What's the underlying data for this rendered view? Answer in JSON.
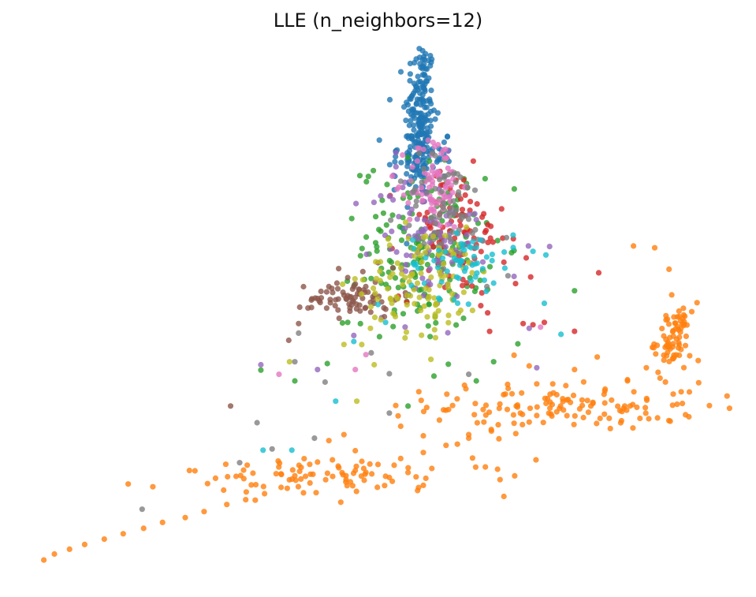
{
  "chart_data": {
    "type": "scatter",
    "title": "LLE (n_neighbors=12)",
    "xlabel": "",
    "ylabel": "",
    "axes_visible": false,
    "grid": false,
    "legend": "none",
    "xlim": [
      0,
      1
    ],
    "ylim": [
      0,
      1
    ],
    "series": [
      {
        "color": "#1f77b4",
        "clusters": [
          {
            "points": [
              [
                0.559,
                0.942
              ],
              [
                0.559,
                0.915
              ],
              [
                0.559,
                0.885
              ],
              [
                0.56,
                0.855
              ],
              [
                0.562,
                0.82
              ],
              [
                0.558,
                0.79
              ],
              [
                0.555,
                0.76
              ],
              [
                0.552,
                0.735
              ],
              [
                0.547,
                0.715
              ]
            ]
          },
          {
            "center": [
              0.556,
              0.8
            ],
            "spread": [
              0.01,
              0.07
            ],
            "n": 180
          },
          {
            "center": [
              0.556,
              0.74
            ],
            "spread": [
              0.022,
              0.025
            ],
            "n": 60
          },
          {
            "points": [
              [
                0.541,
                0.695
              ],
              [
                0.549,
                0.678
              ],
              [
                0.539,
                0.653
              ],
              [
                0.538,
                0.592
              ],
              [
                0.532,
                0.618
              ],
              [
                0.54,
                0.74
              ],
              [
                0.548,
                0.701
              ]
            ]
          }
        ]
      },
      {
        "color": "#ff7f0e",
        "clusters": [
          {
            "points": [
              [
                0.058,
                0.062
              ],
              [
                0.072,
                0.072
              ],
              [
                0.092,
                0.08
              ],
              [
                0.112,
                0.088
              ],
              [
                0.138,
                0.097
              ],
              [
                0.163,
                0.106
              ],
              [
                0.19,
                0.115
              ],
              [
                0.215,
                0.125
              ],
              [
                0.245,
                0.133
              ],
              [
                0.27,
                0.143
              ],
              [
                0.3,
                0.155
              ],
              [
                0.325,
                0.163
              ],
              [
                0.35,
                0.173
              ],
              [
                0.38,
                0.182
              ],
              [
                0.41,
                0.191
              ],
              [
                0.44,
                0.202
              ],
              [
                0.47,
                0.212
              ],
              [
                0.5,
                0.222
              ],
              [
                0.53,
                0.232
              ],
              [
                0.56,
                0.242
              ],
              [
                0.59,
                0.254
              ],
              [
                0.62,
                0.266
              ],
              [
                0.65,
                0.278
              ],
              [
                0.68,
                0.291
              ],
              [
                0.71,
                0.304
              ],
              [
                0.74,
                0.316
              ],
              [
                0.77,
                0.33
              ],
              [
                0.8,
                0.345
              ],
              [
                0.83,
                0.364
              ],
              [
                0.855,
                0.384
              ],
              [
                0.878,
                0.405
              ],
              [
                0.895,
                0.432
              ],
              [
                0.905,
                0.457
              ],
              [
                0.915,
                0.478
              ],
              [
                0.922,
                0.493
              ]
            ]
          },
          {
            "center": [
              0.75,
              0.32
            ],
            "spread": [
              0.09,
              0.02
            ],
            "n": 120
          },
          {
            "center": [
              0.89,
              0.43
            ],
            "spread": [
              0.012,
              0.03
            ],
            "n": 70
          },
          {
            "center": [
              0.45,
              0.2
            ],
            "spread": [
              0.12,
              0.015
            ],
            "n": 90
          },
          {
            "points": [
              [
                0.838,
                0.588
              ],
              [
                0.866,
                0.585
              ],
              [
                0.885,
                0.549
              ],
              [
                0.435,
                0.262
              ],
              [
                0.455,
                0.272
              ],
              [
                0.53,
                0.286
              ],
              [
                0.56,
                0.27
              ],
              [
                0.605,
                0.256
              ],
              [
                0.39,
                0.203
              ],
              [
                0.42,
                0.226
              ],
              [
                0.47,
                0.245
              ],
              [
                0.68,
                0.405
              ],
              [
                0.7,
                0.387
              ],
              [
                0.71,
                0.357
              ],
              [
                0.79,
                0.402
              ],
              [
                0.83,
                0.362
              ],
              [
                0.76,
                0.381
              ],
              [
                0.8,
                0.325
              ],
              [
                0.62,
                0.272
              ],
              [
                0.64,
                0.293
              ],
              [
                0.66,
                0.265
              ],
              [
                0.7,
                0.293
              ],
              [
                0.73,
                0.303
              ]
            ]
          }
        ]
      },
      {
        "color": "#2ca02c",
        "clusters": [
          {
            "center": [
              0.56,
              0.59
            ],
            "spread": [
              0.04,
              0.07
            ],
            "n": 160
          },
          {
            "points": [
              [
                0.345,
                0.38
              ],
              [
                0.39,
                0.362
              ],
              [
                0.433,
                0.391
              ],
              [
                0.453,
                0.459
              ],
              [
                0.46,
                0.46
              ],
              [
                0.502,
                0.436
              ],
              [
                0.52,
                0.453
              ],
              [
                0.574,
                0.37
              ],
              [
                0.593,
                0.39
              ],
              [
                0.653,
                0.394
              ],
              [
                0.645,
                0.515
              ],
              [
                0.63,
                0.362
              ],
              [
                0.685,
                0.424
              ],
              [
                0.76,
                0.513
              ]
            ]
          }
        ]
      },
      {
        "color": "#d62728",
        "clusters": [
          {
            "center": [
              0.6,
              0.61
            ],
            "spread": [
              0.035,
              0.055
            ],
            "n": 90
          },
          {
            "points": [
              [
                0.696,
                0.568
              ],
              [
                0.679,
                0.6
              ],
              [
                0.665,
                0.601
              ],
              [
                0.792,
                0.543
              ],
              [
                0.76,
                0.445
              ],
              [
                0.72,
                0.46
              ],
              [
                0.705,
                0.456
              ],
              [
                0.692,
                0.458
              ],
              [
                0.645,
                0.476
              ],
              [
                0.636,
                0.488
              ],
              [
                0.682,
                0.525
              ],
              [
                0.702,
                0.536
              ],
              [
                0.63,
                0.59
              ],
              [
                0.622,
                0.613
              ],
              [
                0.61,
                0.64
              ]
            ]
          }
        ]
      },
      {
        "color": "#9467bd",
        "clusters": [
          {
            "center": [
              0.56,
              0.6
            ],
            "spread": [
              0.035,
              0.06
            ],
            "n": 90
          },
          {
            "points": [
              [
                0.345,
                0.389
              ],
              [
                0.42,
                0.381
              ],
              [
                0.468,
                0.438
              ],
              [
                0.71,
                0.384
              ],
              [
                0.699,
                0.588
              ],
              [
                0.727,
                0.587
              ],
              [
                0.7,
                0.45
              ],
              [
                0.63,
                0.632
              ],
              [
                0.68,
                0.537
              ]
            ]
          }
        ]
      },
      {
        "color": "#8c564b",
        "clusters": [
          {
            "center": [
              0.47,
              0.5
            ],
            "spread": [
              0.03,
              0.015
            ],
            "n": 70
          },
          {
            "points": [
              [
                0.448,
                0.55
              ],
              [
                0.435,
                0.52
              ],
              [
                0.412,
                0.485
              ],
              [
                0.395,
                0.458
              ],
              [
                0.382,
                0.43
              ],
              [
                0.42,
                0.5
              ],
              [
                0.44,
                0.51
              ],
              [
                0.46,
                0.535
              ],
              [
                0.48,
                0.545
              ],
              [
                0.5,
                0.56
              ],
              [
                0.468,
                0.52
              ],
              [
                0.305,
                0.32
              ]
            ]
          }
        ]
      },
      {
        "color": "#e377c2",
        "clusters": [
          {
            "center": [
              0.575,
              0.695
            ],
            "spread": [
              0.018,
              0.04
            ],
            "n": 80
          },
          {
            "points": [
              [
                0.369,
                0.373
              ],
              [
                0.47,
                0.381
              ],
              [
                0.484,
                0.406
              ],
              [
                0.57,
                0.65
              ],
              [
                0.59,
                0.67
              ],
              [
                0.54,
                0.66
              ],
              [
                0.715,
                0.452
              ]
            ]
          }
        ]
      },
      {
        "color": "#7f7f7f",
        "clusters": [
          {
            "center": [
              0.59,
              0.64
            ],
            "spread": [
              0.03,
              0.05
            ],
            "n": 70
          },
          {
            "points": [
              [
                0.188,
                0.147
              ],
              [
                0.317,
                0.225
              ],
              [
                0.34,
                0.292
              ],
              [
                0.36,
                0.248
              ],
              [
                0.395,
                0.442
              ],
              [
                0.416,
                0.266
              ],
              [
                0.491,
                0.409
              ],
              [
                0.515,
                0.308
              ],
              [
                0.515,
                0.374
              ],
              [
                0.62,
                0.373
              ],
              [
                0.644,
                0.52
              ],
              [
                0.672,
                0.538
              ],
              [
                0.67,
                0.602
              ],
              [
                0.39,
                0.394
              ],
              [
                0.43,
                0.36
              ]
            ]
          }
        ]
      },
      {
        "color": "#bcbd22",
        "clusters": [
          {
            "center": [
              0.56,
              0.53
            ],
            "spread": [
              0.04,
              0.045
            ],
            "n": 110
          },
          {
            "points": [
              [
                0.383,
                0.394
              ],
              [
                0.455,
                0.423
              ],
              [
                0.472,
                0.328
              ],
              [
                0.495,
                0.389
              ],
              [
                0.57,
                0.398
              ],
              [
                0.49,
                0.45
              ],
              [
                0.52,
                0.475
              ],
              [
                0.62,
                0.56
              ],
              [
                0.64,
                0.545
              ]
            ]
          }
        ]
      },
      {
        "color": "#17becf",
        "clusters": [
          {
            "center": [
              0.61,
              0.56
            ],
            "spread": [
              0.035,
              0.03
            ],
            "n": 60
          },
          {
            "points": [
              [
                0.348,
                0.246
              ],
              [
                0.386,
                0.246
              ],
              [
                0.444,
                0.328
              ],
              [
                0.468,
                0.428
              ],
              [
                0.705,
                0.579
              ],
              [
                0.72,
                0.492
              ],
              [
                0.742,
                0.44
              ],
              [
                0.5,
                0.49
              ],
              [
                0.51,
                0.46
              ]
            ]
          }
        ]
      }
    ]
  }
}
